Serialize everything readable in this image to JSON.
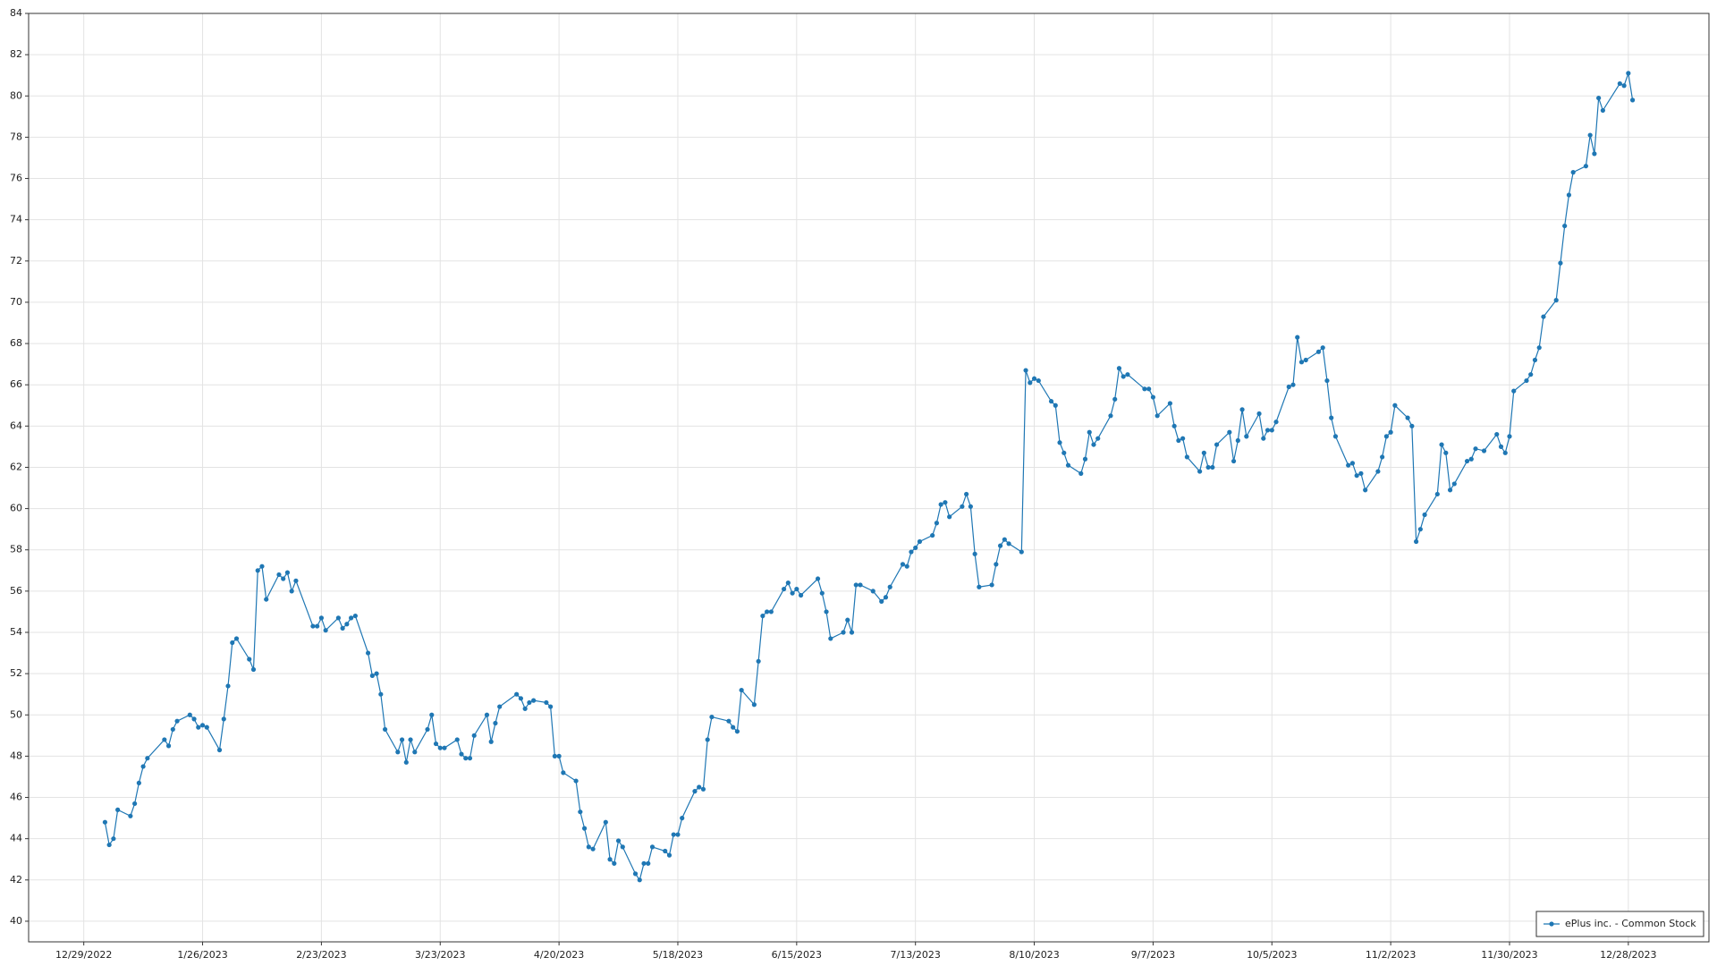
{
  "chart_data": {
    "type": "line",
    "x": [
      "1/3/2023",
      "1/4/2023",
      "1/5/2023",
      "1/6/2023",
      "1/9/2023",
      "1/10/2023",
      "1/11/2023",
      "1/12/2023",
      "1/13/2023",
      "1/17/2023",
      "1/18/2023",
      "1/19/2023",
      "1/20/2023",
      "1/23/2023",
      "1/24/2023",
      "1/25/2023",
      "1/26/2023",
      "1/27/2023",
      "1/30/2023",
      "1/31/2023",
      "2/1/2023",
      "2/2/2023",
      "2/3/2023",
      "2/6/2023",
      "2/7/2023",
      "2/8/2023",
      "2/9/2023",
      "2/10/2023",
      "2/13/2023",
      "2/14/2023",
      "2/15/2023",
      "2/16/2023",
      "2/17/2023",
      "2/21/2023",
      "2/22/2023",
      "2/23/2023",
      "2/24/2023",
      "2/27/2023",
      "2/28/2023",
      "3/1/2023",
      "3/2/2023",
      "3/3/2023",
      "3/6/2023",
      "3/7/2023",
      "3/8/2023",
      "3/9/2023",
      "3/10/2023",
      "3/13/2023",
      "3/14/2023",
      "3/15/2023",
      "3/16/2023",
      "3/17/2023",
      "3/20/2023",
      "3/21/2023",
      "3/22/2023",
      "3/23/2023",
      "3/24/2023",
      "3/27/2023",
      "3/28/2023",
      "3/29/2023",
      "3/30/2023",
      "3/31/2023",
      "4/3/2023",
      "4/4/2023",
      "4/5/2023",
      "4/6/2023",
      "4/10/2023",
      "4/11/2023",
      "4/12/2023",
      "4/13/2023",
      "4/14/2023",
      "4/17/2023",
      "4/18/2023",
      "4/19/2023",
      "4/20/2023",
      "4/21/2023",
      "4/24/2023",
      "4/25/2023",
      "4/26/2023",
      "4/27/2023",
      "4/28/2023",
      "5/1/2023",
      "5/2/2023",
      "5/3/2023",
      "5/4/2023",
      "5/5/2023",
      "5/8/2023",
      "5/9/2023",
      "5/10/2023",
      "5/11/2023",
      "5/12/2023",
      "5/15/2023",
      "5/16/2023",
      "5/17/2023",
      "5/18/2023",
      "5/19/2023",
      "5/22/2023",
      "5/23/2023",
      "5/24/2023",
      "5/25/2023",
      "5/26/2023",
      "5/30/2023",
      "5/31/2023",
      "6/1/2023",
      "6/2/2023",
      "6/5/2023",
      "6/6/2023",
      "6/7/2023",
      "6/8/2023",
      "6/9/2023",
      "6/12/2023",
      "6/13/2023",
      "6/14/2023",
      "6/15/2023",
      "6/16/2023",
      "6/20/2023",
      "6/21/2023",
      "6/22/2023",
      "6/23/2023",
      "6/26/2023",
      "6/27/2023",
      "6/28/2023",
      "6/29/2023",
      "6/30/2023",
      "7/3/2023",
      "7/5/2023",
      "7/6/2023",
      "7/7/2023",
      "7/10/2023",
      "7/11/2023",
      "7/12/2023",
      "7/13/2023",
      "7/14/2023",
      "7/17/2023",
      "7/18/2023",
      "7/19/2023",
      "7/20/2023",
      "7/21/2023",
      "7/24/2023",
      "7/25/2023",
      "7/26/2023",
      "7/27/2023",
      "7/28/2023",
      "7/31/2023",
      "8/1/2023",
      "8/2/2023",
      "8/3/2023",
      "8/4/2023",
      "8/7/2023",
      "8/8/2023",
      "8/9/2023",
      "8/10/2023",
      "8/11/2023",
      "8/14/2023",
      "8/15/2023",
      "8/16/2023",
      "8/17/2023",
      "8/18/2023",
      "8/21/2023",
      "8/22/2023",
      "8/23/2023",
      "8/24/2023",
      "8/25/2023",
      "8/28/2023",
      "8/29/2023",
      "8/30/2023",
      "8/31/2023",
      "9/1/2023",
      "9/5/2023",
      "9/6/2023",
      "9/7/2023",
      "9/8/2023",
      "9/11/2023",
      "9/12/2023",
      "9/13/2023",
      "9/14/2023",
      "9/15/2023",
      "9/18/2023",
      "9/19/2023",
      "9/20/2023",
      "9/21/2023",
      "9/22/2023",
      "9/25/2023",
      "9/26/2023",
      "9/27/2023",
      "9/28/2023",
      "9/29/2023",
      "10/2/2023",
      "10/3/2023",
      "10/4/2023",
      "10/5/2023",
      "10/6/2023",
      "10/9/2023",
      "10/10/2023",
      "10/11/2023",
      "10/12/2023",
      "10/13/2023",
      "10/16/2023",
      "10/17/2023",
      "10/18/2023",
      "10/19/2023",
      "10/20/2023",
      "10/23/2023",
      "10/24/2023",
      "10/25/2023",
      "10/26/2023",
      "10/27/2023",
      "10/30/2023",
      "10/31/2023",
      "11/1/2023",
      "11/2/2023",
      "11/3/2023",
      "11/6/2023",
      "11/7/2023",
      "11/8/2023",
      "11/9/2023",
      "11/10/2023",
      "11/13/2023",
      "11/14/2023",
      "11/15/2023",
      "11/16/2023",
      "11/17/2023",
      "11/20/2023",
      "11/21/2023",
      "11/22/2023",
      "11/24/2023",
      "11/27/2023",
      "11/28/2023",
      "11/29/2023",
      "11/30/2023",
      "12/1/2023",
      "12/4/2023",
      "12/5/2023",
      "12/6/2023",
      "12/7/2023",
      "12/8/2023",
      "12/11/2023",
      "12/12/2023",
      "12/13/2023",
      "12/14/2023",
      "12/15/2023",
      "12/18/2023",
      "12/19/2023",
      "12/20/2023",
      "12/21/2023",
      "12/22/2023",
      "12/26/2023",
      "12/27/2023",
      "12/28/2023",
      "12/29/2023"
    ],
    "series": [
      {
        "name": "ePlus inc. - Common Stock",
        "color": "#1f77b4",
        "values": [
          44.8,
          43.7,
          44.0,
          45.4,
          45.1,
          45.7,
          46.7,
          47.5,
          47.9,
          48.8,
          48.5,
          49.3,
          49.7,
          50.0,
          49.8,
          49.4,
          49.5,
          49.4,
          48.3,
          49.8,
          51.4,
          53.5,
          53.7,
          52.7,
          52.2,
          57.0,
          57.2,
          55.6,
          56.8,
          56.6,
          56.9,
          56.0,
          56.5,
          54.3,
          54.3,
          54.7,
          54.1,
          54.7,
          54.2,
          54.4,
          54.7,
          54.8,
          53.0,
          51.9,
          52.0,
          51.0,
          49.3,
          48.2,
          48.8,
          47.7,
          48.8,
          48.2,
          49.3,
          50.0,
          48.6,
          48.4,
          48.4,
          48.8,
          48.1,
          47.9,
          47.9,
          49.0,
          50.0,
          48.7,
          49.6,
          50.4,
          51.0,
          50.8,
          50.3,
          50.6,
          50.7,
          50.6,
          50.4,
          48.0,
          48.0,
          47.2,
          46.8,
          45.3,
          44.5,
          43.6,
          43.5,
          44.8,
          43.0,
          42.8,
          43.9,
          43.6,
          42.3,
          42.0,
          42.8,
          42.8,
          43.6,
          43.4,
          43.2,
          44.2,
          44.2,
          45.0,
          46.3,
          46.5,
          46.4,
          48.8,
          49.9,
          49.7,
          49.4,
          49.2,
          51.2,
          50.5,
          52.6,
          54.8,
          55.0,
          55.0,
          56.1,
          56.4,
          55.9,
          56.1,
          55.8,
          56.6,
          55.9,
          55.0,
          53.7,
          54.0,
          54.6,
          54.0,
          56.3,
          56.3,
          56.0,
          55.5,
          55.7,
          56.2,
          57.3,
          57.2,
          57.9,
          58.1,
          58.4,
          58.7,
          59.3,
          60.2,
          60.3,
          59.6,
          60.1,
          60.7,
          60.1,
          57.8,
          56.2,
          56.3,
          57.3,
          58.2,
          58.5,
          58.3,
          57.9,
          66.7,
          66.1,
          66.3,
          66.2,
          65.2,
          65.0,
          63.2,
          62.7,
          62.1,
          61.7,
          62.4,
          63.7,
          63.1,
          63.4,
          64.5,
          65.3,
          66.8,
          66.4,
          66.5,
          65.8,
          65.8,
          65.4,
          64.5,
          65.1,
          64.0,
          63.3,
          63.4,
          62.5,
          61.8,
          62.7,
          62.0,
          62.0,
          63.1,
          63.7,
          62.3,
          63.3,
          64.8,
          63.5,
          64.6,
          63.4,
          63.8,
          63.8,
          64.2,
          65.9,
          66.0,
          68.3,
          67.1,
          67.2,
          67.6,
          67.8,
          66.2,
          64.4,
          63.5,
          62.1,
          62.2,
          61.6,
          61.7,
          60.9,
          61.8,
          62.5,
          63.5,
          63.7,
          65.0,
          64.4,
          64.0,
          58.4,
          59.0,
          59.7,
          60.7,
          63.1,
          62.7,
          60.9,
          61.2,
          62.3,
          62.4,
          62.9,
          62.8,
          63.6,
          63.0,
          62.7,
          63.5,
          65.7,
          66.2,
          66.5,
          67.2,
          67.8,
          69.3,
          70.1,
          71.9,
          73.7,
          75.2,
          76.3,
          76.6,
          78.1,
          77.2,
          79.9,
          79.3,
          80.6,
          80.5,
          81.1,
          79.8
        ]
      }
    ],
    "xlim": [
      "12/16/2022",
      "1/16/2024"
    ],
    "xticks": [
      "12/29/2022",
      "1/26/2023",
      "2/23/2023",
      "3/23/2023",
      "4/20/2023",
      "5/18/2023",
      "6/15/2023",
      "7/13/2023",
      "8/10/2023",
      "9/7/2023",
      "10/5/2023",
      "11/2/2023",
      "11/30/2023",
      "12/28/2023"
    ],
    "ylim": [
      39,
      84
    ],
    "yticks": [
      40,
      42,
      44,
      46,
      48,
      50,
      52,
      54,
      56,
      58,
      60,
      62,
      64,
      66,
      68,
      70,
      72,
      74,
      76,
      78,
      80,
      82,
      84
    ],
    "grid": true,
    "legend": "lower right"
  }
}
